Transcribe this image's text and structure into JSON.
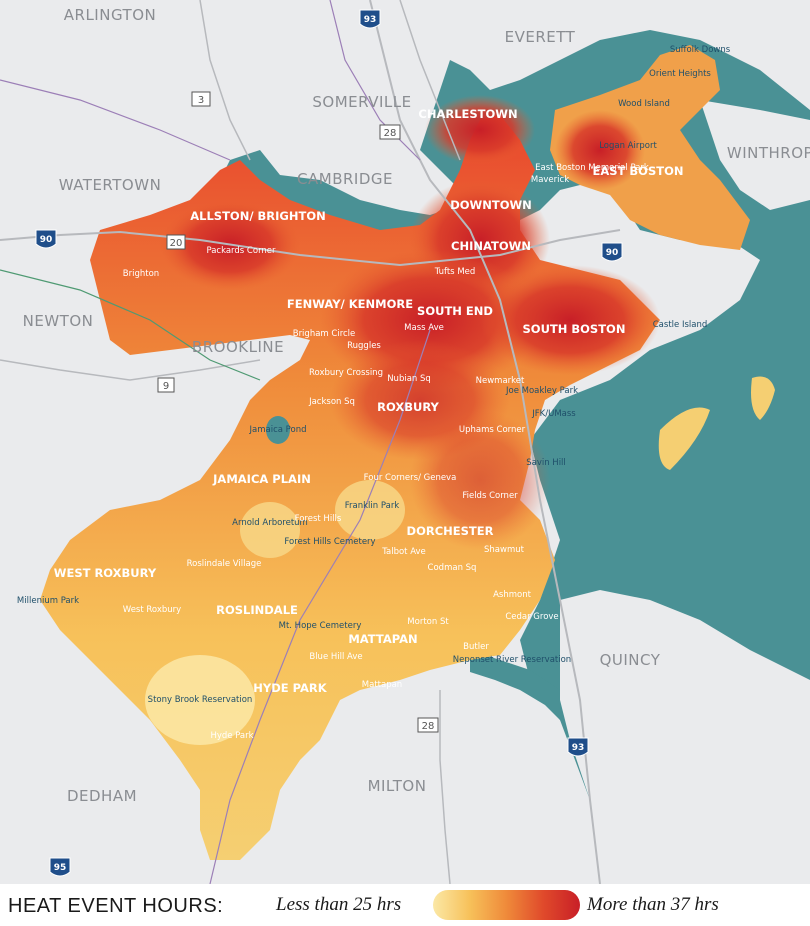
{
  "towns": [
    "ARLINGTON",
    "EVERETT",
    "SOMERVILLE",
    "WATERTOWN",
    "CAMBRIDGE",
    "WINTHROP",
    "NEWTON",
    "BROOKLINE",
    "QUINCY",
    "MILTON",
    "DEDHAM"
  ],
  "neighborhoods": [
    "CHARLESTOWN",
    "EAST BOSTON",
    "DOWNTOWN",
    "CHINATOWN",
    "ALLSTON/ BRIGHTON",
    "FENWAY/ KENMORE",
    "SOUTH END",
    "SOUTH BOSTON",
    "ROXBURY",
    "JAMAICA PLAIN",
    "DORCHESTER",
    "WEST ROXBURY",
    "ROSLINDALE",
    "MATTAPAN",
    "HYDE PARK"
  ],
  "places": [
    "Suffolk Downs",
    "Orient Heights",
    "Wood Island",
    "Logan Airport",
    "East Boston Memorial Park",
    "Maverick",
    "Packards Corner",
    "Brighton",
    "Tufts Med",
    "Mass Ave",
    "Brigham Circle",
    "Ruggles",
    "Roxbury Crossing",
    "Nubian Sq",
    "Newmarket",
    "Joe Moakley Park",
    "JFK/UMass",
    "Castle Island",
    "Jackson Sq",
    "Uphams Corner",
    "Jamaica Pond",
    "Savin Hill",
    "Four Corners/ Geneva",
    "Fields Corner",
    "Franklin Park",
    "Arnold Arboretum",
    "Forest Hills",
    "Forest Hills Cemetery",
    "Talbot Ave",
    "Shawmut",
    "Roslindale Village",
    "Codman Sq",
    "Ashmont",
    "Millenium Park",
    "West Roxbury",
    "Mt. Hope Cemetery",
    "Cedar Grove",
    "Morton St",
    "Butler",
    "Neponset River Reservation",
    "Blue Hill Ave",
    "Mattapan",
    "Stony Brook Reservation",
    "Hyde Park"
  ],
  "highways": [
    "93",
    "90",
    "20",
    "3",
    "28",
    "9",
    "95"
  ],
  "legend": {
    "title": "HEAT EVENT HOURS:",
    "low_label": "Less than 25 hrs",
    "high_label": "More than 37 hrs",
    "colors": [
      "#fbe8a6",
      "#f7c15a",
      "#ef8a3a",
      "#e04a2b",
      "#c81f27"
    ]
  },
  "colors": {
    "water": "#4a9195",
    "land": "#eaebed",
    "hot": "#c81f27",
    "cool": "#fbe8a6"
  }
}
